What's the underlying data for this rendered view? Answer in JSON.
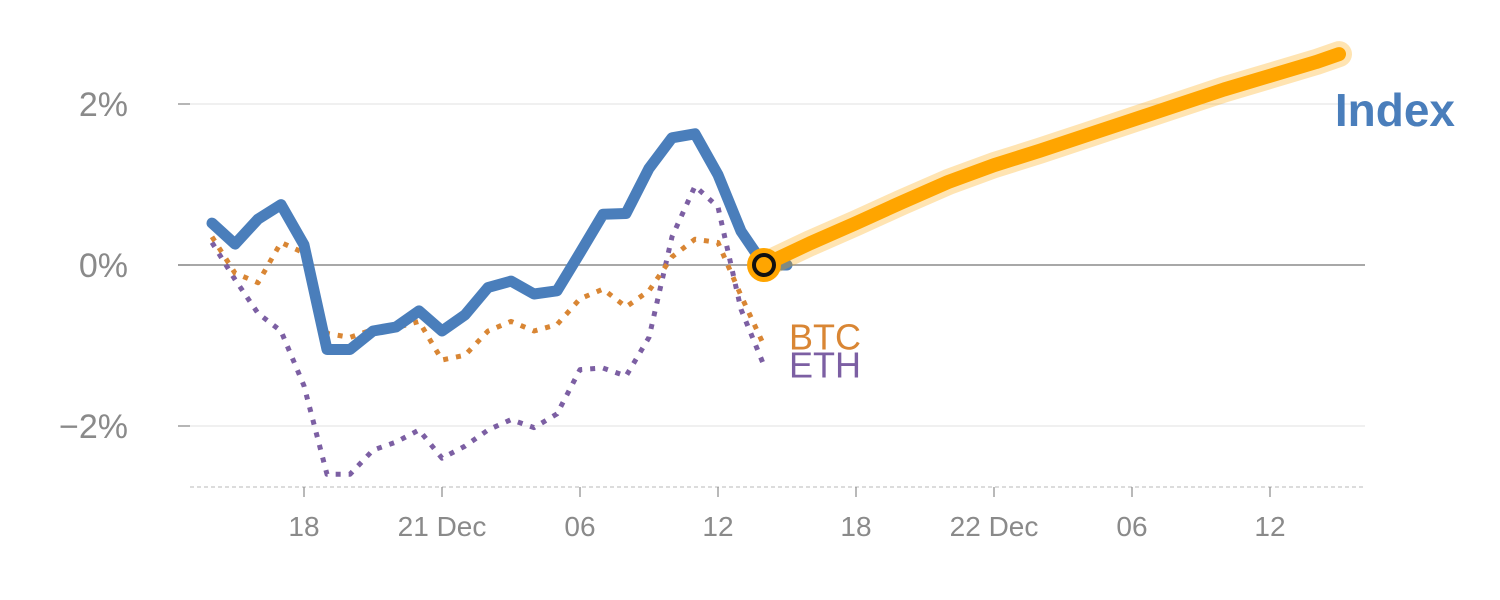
{
  "colors": {
    "index": "#4a7ebb",
    "btc": "#d98634",
    "eth": "#7c5fa3",
    "projection": "#ffa500",
    "axis_text": "#8a8a8a",
    "zero_line": "#8c8c8c",
    "grid": "#e6e6e6"
  },
  "chart_data": {
    "type": "line",
    "y_unit": "%",
    "ylim": [
      -2.75,
      3.0
    ],
    "y_ticks": [
      {
        "value": 2,
        "label": "2%"
      },
      {
        "value": 0,
        "label": "0%"
      },
      {
        "value": -2,
        "label": "−2%"
      }
    ],
    "x_range": [
      0,
      51
    ],
    "x_ticks": [
      {
        "x": 5,
        "label": "18"
      },
      {
        "x": 11,
        "label": "21 Dec"
      },
      {
        "x": 17,
        "label": "06"
      },
      {
        "x": 23,
        "label": "12"
      },
      {
        "x": 29,
        "label": "18"
      },
      {
        "x": 35,
        "label": "22 Dec"
      },
      {
        "x": 41,
        "label": "06"
      },
      {
        "x": 47,
        "label": "12"
      }
    ],
    "grid": true,
    "series": [
      {
        "name": "Index",
        "style": "solid",
        "x": [
          1,
          2,
          3,
          4,
          5,
          6,
          7,
          8,
          9,
          10,
          11,
          12,
          13,
          14,
          15,
          16,
          17,
          18,
          19,
          20,
          21,
          22,
          23,
          24,
          25,
          26
        ],
        "values": [
          0.52,
          0.26,
          0.57,
          0.75,
          0.25,
          -1.05,
          -1.05,
          -0.82,
          -0.77,
          -0.57,
          -0.82,
          -0.62,
          -0.28,
          -0.2,
          -0.36,
          -0.32,
          0.15,
          0.63,
          0.64,
          1.2,
          1.58,
          1.63,
          1.12,
          0.42,
          0.0,
          0.0
        ]
      },
      {
        "name": "BTC",
        "style": "dotted",
        "x": [
          1,
          2,
          3,
          4,
          5,
          6,
          7,
          8,
          9,
          10,
          11,
          12,
          13,
          14,
          15,
          16,
          17,
          18,
          19,
          20,
          21,
          22,
          23,
          24,
          25
        ],
        "values": [
          0.35,
          -0.1,
          -0.22,
          0.28,
          0.15,
          -0.85,
          -0.9,
          -0.8,
          -0.78,
          -0.7,
          -1.18,
          -1.12,
          -0.82,
          -0.7,
          -0.82,
          -0.74,
          -0.42,
          -0.3,
          -0.52,
          -0.32,
          0.1,
          0.32,
          0.28,
          -0.38,
          -1.0
        ]
      },
      {
        "name": "ETH",
        "style": "dotted",
        "x": [
          1,
          2,
          3,
          4,
          5,
          6,
          7,
          8,
          9,
          10,
          11,
          12,
          13,
          14,
          15,
          16,
          17,
          18,
          19,
          20,
          21,
          22,
          23,
          24,
          25
        ],
        "values": [
          0.28,
          -0.18,
          -0.6,
          -0.82,
          -1.5,
          -2.6,
          -2.6,
          -2.3,
          -2.2,
          -2.05,
          -2.4,
          -2.25,
          -2.05,
          -1.92,
          -2.02,
          -1.85,
          -1.3,
          -1.28,
          -1.38,
          -0.9,
          0.35,
          0.98,
          0.72,
          -0.55,
          -1.25
        ]
      }
    ],
    "projection": {
      "x": [
        25,
        27,
        29,
        31,
        33,
        35,
        37,
        39,
        41,
        43,
        45,
        47,
        49,
        50
      ],
      "values": [
        0.0,
        0.27,
        0.52,
        0.78,
        1.03,
        1.24,
        1.42,
        1.61,
        1.8,
        1.99,
        2.18,
        2.35,
        2.52,
        2.62
      ]
    },
    "marker": {
      "x": 25,
      "value": 0.0
    },
    "labels": {
      "index": "Index",
      "btc": "BTC",
      "eth": "ETH"
    }
  }
}
